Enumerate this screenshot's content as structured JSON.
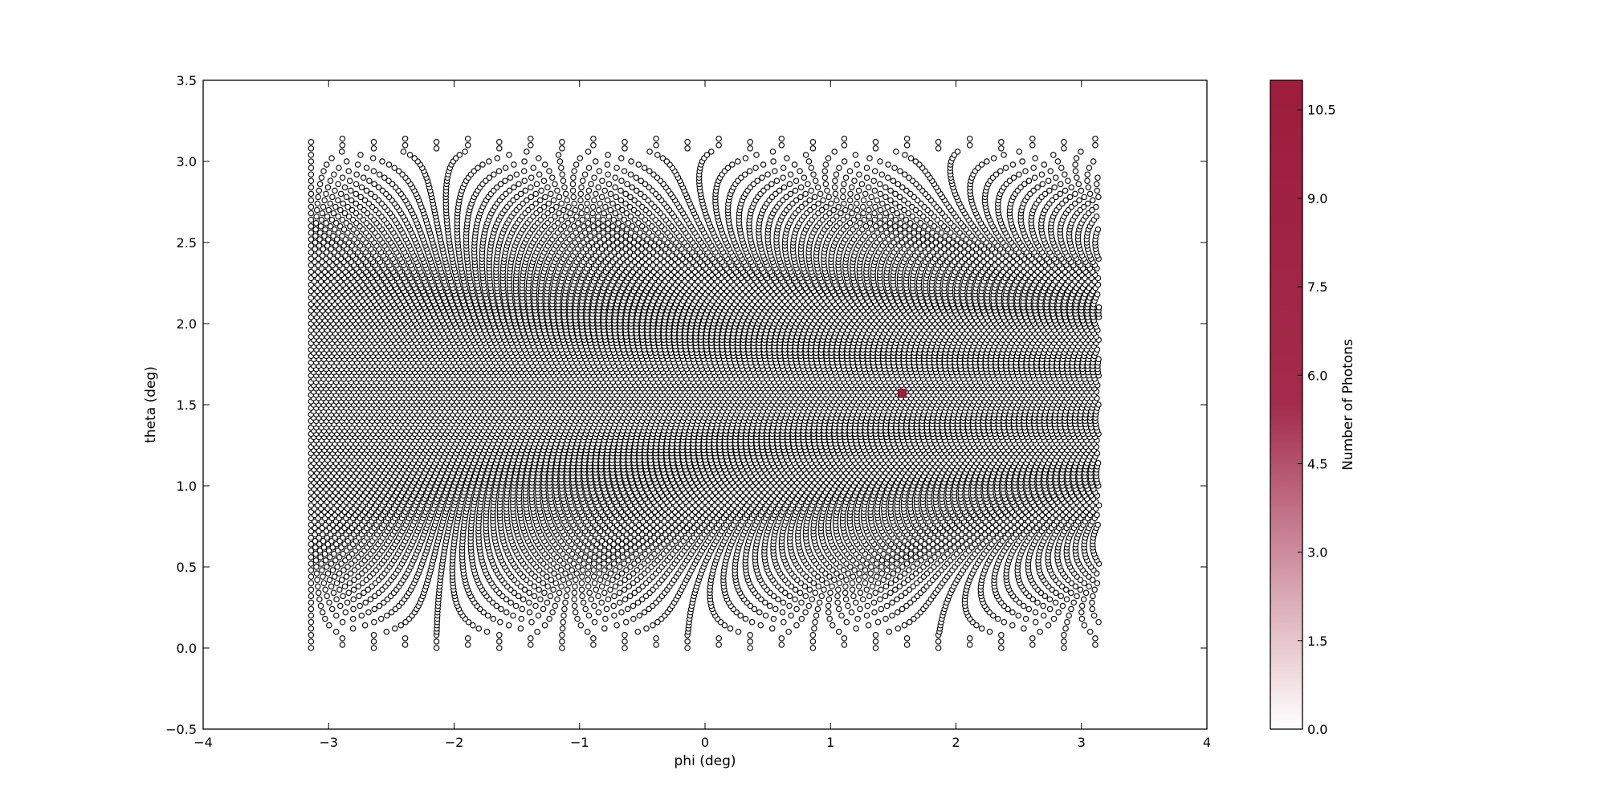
{
  "chart_data": {
    "type": "scatter",
    "title": "",
    "xlabel": "phi (deg)",
    "ylabel": "theta (deg)",
    "xlim": [
      -4,
      4
    ],
    "ylim": [
      -0.5,
      3.5
    ],
    "xticks": [
      -4,
      -3,
      -2,
      -1,
      0,
      1,
      2,
      3,
      4
    ],
    "xtick_labels": [
      "−4",
      "−3",
      "−2",
      "−1",
      "0",
      "1",
      "2",
      "3",
      "4"
    ],
    "yticks": [
      -0.5,
      0.0,
      0.5,
      1.0,
      1.5,
      2.0,
      2.5,
      3.0,
      3.5
    ],
    "ytick_labels": [
      "−0.5",
      "0.0",
      "0.5",
      "1.0",
      "1.5",
      "2.0",
      "2.5",
      "3.0",
      "3.5"
    ],
    "grid": false,
    "marker": "open-circle",
    "points_description_range": {
      "phi": [
        -3.14,
        3.14
      ],
      "theta": [
        0.0,
        3.14
      ]
    },
    "sampling": {
      "theta_step": 0.02,
      "phi_step_at_equator": 0.04
    },
    "highlighted_points": [
      {
        "phi": 1.57,
        "theta": 1.57,
        "photons": 11
      }
    ],
    "colorbar": {
      "label": "Number of Photons",
      "min": 0.0,
      "max": 11.0,
      "ticks": [
        0.0,
        1.5,
        3.0,
        4.5,
        6.0,
        7.5,
        9.0,
        10.5
      ],
      "tick_labels": [
        "0.0",
        "1.5",
        "3.0",
        "4.5",
        "6.0",
        "7.5",
        "9.0",
        "10.5"
      ],
      "color_low": "#ffffff",
      "color_mid": "#a32b4c",
      "color_high": "#9e1c3c"
    }
  }
}
